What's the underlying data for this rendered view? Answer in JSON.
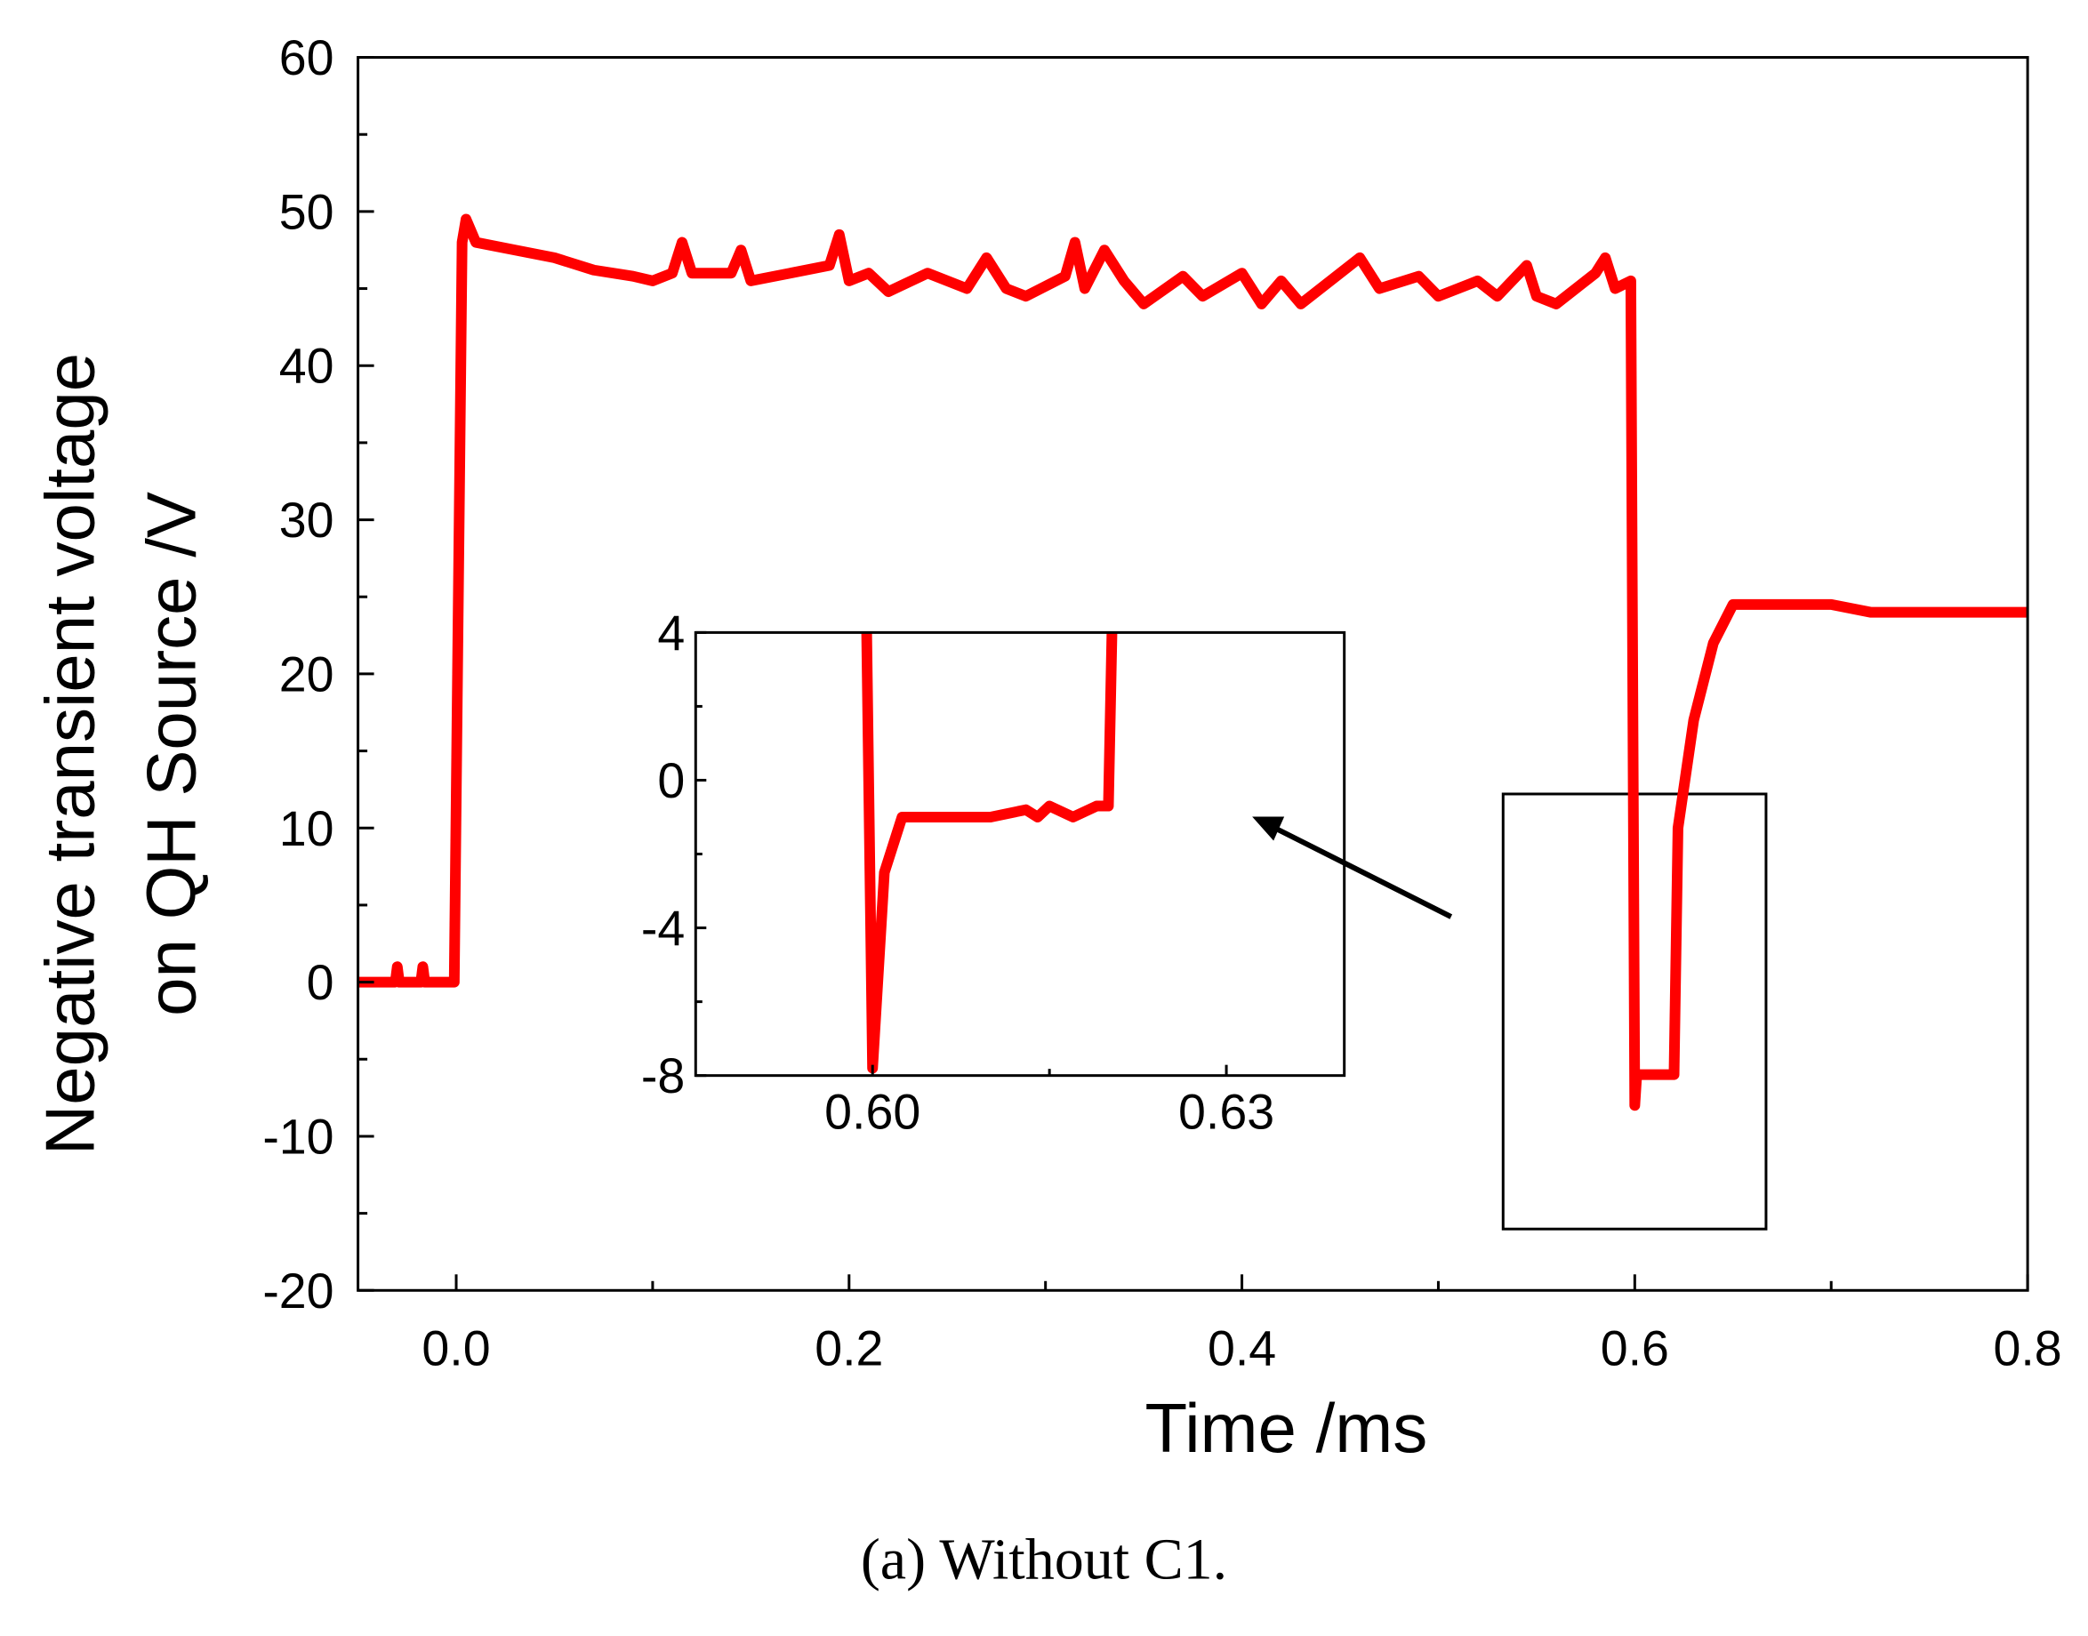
{
  "chart_data": [
    {
      "type": "line",
      "xlabel": "Time /ms",
      "ylabel": [
        "Negative transient voltage",
        "on QH Source /V"
      ],
      "xlim": [
        -0.05,
        0.8
      ],
      "ylim": [
        -20,
        60
      ],
      "xticks": [
        {
          "value": 0,
          "label": "0.0"
        },
        {
          "value": 0.2,
          "label": "0.2"
        },
        {
          "value": 0.4,
          "label": "0.4"
        },
        {
          "value": 0.6,
          "label": "0.6"
        },
        {
          "value": 0.8,
          "label": "0.8"
        }
      ],
      "xminor_ticks": [
        0.1,
        0.3,
        0.5,
        0.7
      ],
      "yticks": [
        -20,
        -10,
        0,
        10,
        20,
        30,
        40,
        50,
        60
      ],
      "yminor_ticks": [
        -15,
        -5,
        5,
        15,
        25,
        35,
        45,
        55
      ],
      "series": [
        {
          "color": "#ff0000",
          "x": [
            -0.05,
            -0.031,
            -0.03,
            -0.029,
            -0.018,
            -0.017,
            -0.016,
            -0.001,
            0.003,
            0.005,
            0.01,
            0.03,
            0.05,
            0.07,
            0.09,
            0.1,
            0.11,
            0.115,
            0.12,
            0.14,
            0.145,
            0.15,
            0.17,
            0.19,
            0.195,
            0.2,
            0.21,
            0.22,
            0.24,
            0.26,
            0.27,
            0.28,
            0.29,
            0.31,
            0.315,
            0.32,
            0.33,
            0.34,
            0.35,
            0.37,
            0.38,
            0.4,
            0.41,
            0.42,
            0.43,
            0.45,
            0.46,
            0.47,
            0.49,
            0.5,
            0.52,
            0.53,
            0.545,
            0.55,
            0.56,
            0.58,
            0.585,
            0.59,
            0.598,
            0.6,
            0.601,
            0.62,
            0.622,
            0.63,
            0.64,
            0.65,
            0.7,
            0.72,
            0.75,
            0.8
          ],
          "values": [
            0,
            0,
            1,
            0,
            0,
            1,
            0,
            0,
            48,
            49.5,
            48,
            47.5,
            47,
            46.2,
            45.8,
            45.5,
            46,
            48,
            46,
            46,
            47.5,
            45.5,
            46,
            46.5,
            48.5,
            45.5,
            46,
            44.8,
            46,
            45,
            47,
            45,
            44.5,
            45.8,
            48,
            45,
            47.5,
            45.5,
            44,
            45.8,
            44.5,
            46,
            44,
            45.5,
            44,
            46,
            47,
            45,
            45.8,
            44.5,
            45.5,
            44.5,
            46.5,
            44.5,
            44,
            46,
            47,
            45,
            45.5,
            -8,
            -6,
            -6,
            10,
            17,
            22,
            24.5,
            24.5,
            24,
            24,
            24
          ]
        }
      ]
    },
    {
      "type": "line",
      "xlim": [
        0.585,
        0.64
      ],
      "ylim": [
        -8,
        4
      ],
      "xticks": [
        {
          "value": 0.6,
          "label": "0.60"
        },
        {
          "value": 0.63,
          "label": "0.63"
        }
      ],
      "xminor_ticks": [
        0.615
      ],
      "yticks": [
        -8,
        -4,
        0,
        4
      ],
      "yminor_ticks": [
        -6,
        -2,
        2
      ],
      "series": [
        {
          "color": "#ff0000",
          "x": [
            0.5995,
            0.6,
            0.601,
            0.6025,
            0.61,
            0.613,
            0.614,
            0.615,
            0.617,
            0.619,
            0.62,
            0.6203
          ],
          "values": [
            4,
            -7.8,
            -2.5,
            -1,
            -1,
            -0.8,
            -1,
            -0.7,
            -1,
            -0.7,
            -0.7,
            4
          ]
        }
      ]
    }
  ],
  "caption": "(a) Without C1."
}
